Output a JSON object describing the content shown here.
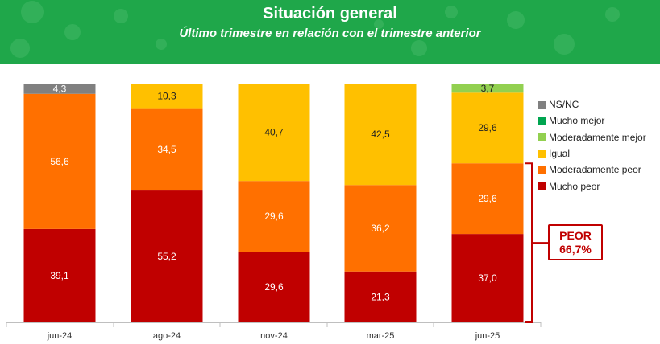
{
  "header": {
    "title": "Situación general",
    "subtitle": "Último trimestre en relación con el trimestre anterior"
  },
  "colors": {
    "header_bg": "#1fa74a",
    "NS/NC": "#808080",
    "Mucho mejor": "#00a550",
    "Moderadamente mejor": "#92d050",
    "Igual": "#ffc000",
    "Moderadamente peor": "#ff7000",
    "Mucho peor": "#c00000"
  },
  "callout": {
    "label": "PEOR",
    "value": "66,7%"
  },
  "chart_data": {
    "type": "bar",
    "stacked": true,
    "categories": [
      "jun-24",
      "ago-24",
      "nov-24",
      "mar-25",
      "jun-25"
    ],
    "ylim": [
      0,
      100
    ],
    "legend_position": "right",
    "legend": [
      "NS/NC",
      "Mucho mejor",
      "Moderadamente mejor",
      "Igual",
      "Moderadamente peor",
      "Mucho peor"
    ],
    "series": [
      {
        "name": "Mucho peor",
        "values": [
          39.1,
          55.2,
          29.6,
          21.3,
          37.0
        ]
      },
      {
        "name": "Moderadamente peor",
        "values": [
          56.6,
          34.5,
          29.6,
          36.2,
          29.6
        ]
      },
      {
        "name": "Igual",
        "values": [
          0,
          10.3,
          40.7,
          42.5,
          29.6
        ]
      },
      {
        "name": "Moderadamente mejor",
        "values": [
          0,
          0,
          0,
          0,
          3.7
        ]
      },
      {
        "name": "Mucho mejor",
        "values": [
          0,
          0,
          0,
          0,
          0
        ]
      },
      {
        "name": "NS/NC",
        "values": [
          4.3,
          0,
          0,
          0,
          0
        ]
      }
    ],
    "data_labels": {
      "Mucho peor": [
        "39,1",
        "55,2",
        "29,6",
        "21,3",
        "37,0"
      ],
      "Moderadamente peor": [
        "56,6",
        "34,5",
        "29,6",
        "36,2",
        "29,6"
      ],
      "Igual": [
        "",
        "10,3",
        "40,7",
        "42,5",
        "29,6"
      ],
      "Moderadamente mejor": [
        "",
        "",
        "",
        "",
        "3,7"
      ],
      "Mucho mejor": [
        "",
        "",
        "",
        "",
        ""
      ],
      "NS/NC": [
        "4,3",
        "",
        "",
        "",
        ""
      ]
    }
  }
}
